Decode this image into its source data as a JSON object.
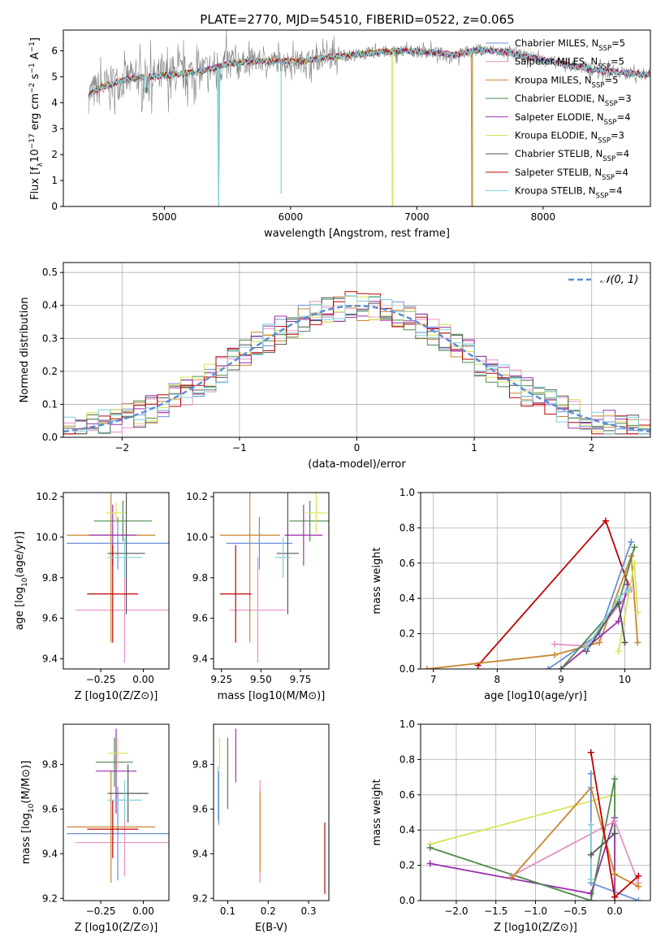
{
  "figure_title": "PLATE=2770, MJD=54510, FIBERID=0522, z=0.065",
  "chart_data": [
    {
      "id": "spectrum",
      "type": "line",
      "title": "PLATE=2770, MJD=54510, FIBERID=0522, z=0.065",
      "xlabel": "wavelength [Angstrom, rest frame]",
      "ylabel": "Flux [f_λ 10^-17 erg cm^-2 s^-1 A^-1]",
      "xlim": [
        4200,
        8850
      ],
      "ylim": [
        0,
        6.8
      ],
      "xticks": [
        5000,
        6000,
        7000,
        8000
      ],
      "yticks": [
        0,
        1,
        2,
        3,
        4,
        5,
        6
      ],
      "grid": false,
      "legend_position": "right",
      "observed_flux_color": "#808080",
      "series": [
        {
          "name": "Chabrier MILES, N_SSP=5",
          "color": "#6a8fd8"
        },
        {
          "name": "Salpeter MILES, N_SSP=5",
          "color": "#e891c8"
        },
        {
          "name": "Kroupa MILES, N_SSP=5",
          "color": "#c8852e"
        },
        {
          "name": "Chabrier ELODIE, N_SSP=3",
          "color": "#4f8a4f"
        },
        {
          "name": "Salpeter ELODIE, N_SSP=4",
          "color": "#9b30b0"
        },
        {
          "name": "Kroupa ELODIE, N_SSP=3",
          "color": "#d8e35a"
        },
        {
          "name": "Chabrier STELIB, N_SSP=4",
          "color": "#555555"
        },
        {
          "name": "Salpeter STELIB, N_SSP=4",
          "color": "#c00000"
        },
        {
          "name": "Kroupa STELIB, N_SSP=4",
          "color": "#7fd0d8"
        }
      ],
      "continuum": [
        [
          4400,
          4.3
        ],
        [
          4500,
          4.6
        ],
        [
          4700,
          4.9
        ],
        [
          4900,
          5.0
        ],
        [
          5100,
          5.1
        ],
        [
          5300,
          5.2
        ],
        [
          5500,
          5.5
        ],
        [
          5700,
          5.6
        ],
        [
          5900,
          5.6
        ],
        [
          6100,
          5.6
        ],
        [
          6300,
          5.75
        ],
        [
          6500,
          5.85
        ],
        [
          6700,
          5.95
        ],
        [
          6900,
          6.0
        ],
        [
          7100,
          5.95
        ],
        [
          7300,
          5.85
        ],
        [
          7500,
          6.05
        ],
        [
          7700,
          5.95
        ],
        [
          7900,
          5.75
        ],
        [
          8100,
          5.55
        ],
        [
          8300,
          5.35
        ],
        [
          8500,
          5.2
        ],
        [
          8800,
          5.1
        ]
      ],
      "dips": [
        [
          5430,
          0
        ],
        [
          5925,
          0.5
        ],
        [
          6810,
          0
        ],
        [
          7440,
          0
        ]
      ]
    },
    {
      "id": "residuals",
      "type": "line",
      "xlabel": "(data-model)/error",
      "ylabel": "Normed distribution",
      "xlim": [
        -2.5,
        2.5
      ],
      "ylim": [
        0,
        0.53
      ],
      "xticks": [
        -2,
        -1,
        0,
        1,
        2
      ],
      "yticks": [
        0.0,
        0.1,
        0.2,
        0.3,
        0.4,
        0.5
      ],
      "grid": true,
      "legend_position": "top-right",
      "gaussian_label": "𝒩(0, 1)",
      "gaussian_color": "#5b8ed6"
    },
    {
      "id": "age-vs-Z",
      "type": "scatter",
      "xlabel": "Z [log10(Z/Z⊙)]",
      "ylabel": "age  [log10(age/yr)]",
      "xlim": [
        -0.47,
        0.15
      ],
      "ylim": [
        9.35,
        10.22
      ],
      "xticks": [
        -0.25,
        0.0
      ],
      "yticks": [
        9.4,
        9.6,
        9.8,
        10.0,
        10.2
      ],
      "points": [
        {
          "c": "#6a8fd8",
          "x": -0.15,
          "xe": 0.3,
          "y": 9.97,
          "ye": 0.13
        },
        {
          "c": "#e891c8",
          "x": -0.11,
          "xe": 0.29,
          "y": 9.64,
          "ye": 0.26
        },
        {
          "c": "#c8852e",
          "x": -0.19,
          "xe": 0.26,
          "y": 10.01,
          "ye": 0.53
        },
        {
          "c": "#4f8a4f",
          "x": -0.12,
          "xe": 0.17,
          "y": 10.08,
          "ye": 0.1
        },
        {
          "c": "#9b30b0",
          "x": -0.18,
          "xe": 0.14,
          "y": 10.01,
          "ye": 0.15
        },
        {
          "c": "#d8e35a",
          "x": -0.16,
          "xe": 0.06,
          "y": 10.12,
          "ye": 0.05
        },
        {
          "c": "#555555",
          "x": -0.1,
          "xe": 0.11,
          "y": 9.92,
          "ye": 0.3
        },
        {
          "c": "#c00000",
          "x": -0.18,
          "xe": 0.15,
          "y": 9.72,
          "ye": 0.24
        },
        {
          "c": "#7fd0d8",
          "x": -0.11,
          "xe": 0.1,
          "y": 9.9,
          "ye": 0.1
        }
      ]
    },
    {
      "id": "age-vs-mass",
      "type": "scatter",
      "xlabel": "mass [log10(M/M⊙)]",
      "ylabel": "",
      "xlim": [
        9.2,
        9.93
      ],
      "ylim": [
        9.35,
        10.22
      ],
      "xticks": [
        9.25,
        9.5,
        9.75
      ],
      "yticks": [
        9.4,
        9.6,
        9.8,
        10.0,
        10.2
      ],
      "points": [
        {
          "c": "#6a8fd8",
          "x": 9.49,
          "xe": 0.21,
          "y": 9.97,
          "ye": 0.13
        },
        {
          "c": "#e891c8",
          "x": 9.48,
          "xe": 0.18,
          "y": 9.64,
          "ye": 0.26
        },
        {
          "c": "#c8852e",
          "x": 9.43,
          "xe": 0.19,
          "y": 10.01,
          "ye": 0.53
        },
        {
          "c": "#4f8a4f",
          "x": 9.81,
          "xe": 0.13,
          "y": 10.08,
          "ye": 0.1
        },
        {
          "c": "#9b30b0",
          "x": 9.77,
          "xe": 0.12,
          "y": 10.01,
          "ye": 0.15
        },
        {
          "c": "#d8e35a",
          "x": 9.85,
          "xe": 0.07,
          "y": 10.12,
          "ye": 0.1
        },
        {
          "c": "#555555",
          "x": 9.67,
          "xe": 0.07,
          "y": 9.92,
          "ye": 0.3
        },
        {
          "c": "#c00000",
          "x": 9.34,
          "xe": 0.1,
          "y": 9.72,
          "ye": 0.24
        },
        {
          "c": "#7fd0d8",
          "x": 9.64,
          "xe": 0.05,
          "y": 9.9,
          "ye": 0.1
        }
      ]
    },
    {
      "id": "massweight-vs-age",
      "type": "line",
      "xlabel": "age  [log10(age/yr)]",
      "ylabel": "mass weight",
      "xlim": [
        6.8,
        10.4
      ],
      "ylim": [
        0,
        1.0
      ],
      "xticks": [
        7,
        8,
        9,
        10
      ],
      "yticks": [
        0.0,
        0.2,
        0.4,
        0.6,
        0.8,
        1.0
      ],
      "grid": true,
      "series": [
        {
          "c": "#c00000",
          "pts": [
            [
              7.7,
              0.02
            ],
            [
              9.7,
              0.84
            ],
            [
              10.05,
              0.48
            ]
          ]
        },
        {
          "c": "#c8852e",
          "pts": [
            [
              6.9,
              0.0
            ],
            [
              8.9,
              0.08
            ],
            [
              9.6,
              0.15
            ],
            [
              10.1,
              0.64
            ],
            [
              10.2,
              0.15
            ]
          ]
        },
        {
          "c": "#6a8fd8",
          "pts": [
            [
              8.8,
              0.0
            ],
            [
              9.6,
              0.2
            ],
            [
              10.1,
              0.72
            ]
          ]
        },
        {
          "c": "#e891c8",
          "pts": [
            [
              8.9,
              0.14
            ],
            [
              9.4,
              0.13
            ],
            [
              10.1,
              0.45
            ]
          ]
        },
        {
          "c": "#9b30b0",
          "pts": [
            [
              9.0,
              0.0
            ],
            [
              9.9,
              0.27
            ],
            [
              10.05,
              0.48
            ]
          ]
        },
        {
          "c": "#d8e35a",
          "pts": [
            [
              9.9,
              0.1
            ],
            [
              10.15,
              0.6
            ],
            [
              10.2,
              0.32
            ]
          ]
        },
        {
          "c": "#4f8a4f",
          "pts": [
            [
              9.0,
              0.0
            ],
            [
              9.9,
              0.37
            ],
            [
              10.15,
              0.69
            ]
          ]
        },
        {
          "c": "#555555",
          "pts": [
            [
              9.4,
              0.1
            ],
            [
              9.9,
              0.38
            ],
            [
              10.0,
              0.15
            ]
          ]
        },
        {
          "c": "#7fd0d8",
          "pts": [
            [
              9.4,
              0.12
            ],
            [
              9.9,
              0.4
            ],
            [
              10.05,
              0.45
            ]
          ]
        }
      ]
    },
    {
      "id": "mass-vs-Z",
      "type": "scatter",
      "xlabel": "Z [log10(Z/Z⊙)]",
      "ylabel": "mass [log10(M/M⊙)]",
      "xlim": [
        -0.47,
        0.15
      ],
      "ylim": [
        9.19,
        9.98
      ],
      "xticks": [
        -0.25,
        0.0
      ],
      "yticks": [
        9.2,
        9.4,
        9.6,
        9.8
      ],
      "points": [
        {
          "c": "#6a8fd8",
          "x": -0.15,
          "xe": 0.3,
          "y": 9.49,
          "ye": 0.21
        },
        {
          "c": "#e891c8",
          "x": -0.11,
          "xe": 0.29,
          "y": 9.45,
          "ye": 0.15
        },
        {
          "c": "#c8852e",
          "x": -0.19,
          "xe": 0.26,
          "y": 9.52,
          "ye": 0.25
        },
        {
          "c": "#4f8a4f",
          "x": -0.17,
          "xe": 0.11,
          "y": 9.81,
          "ye": 0.11
        },
        {
          "c": "#9b30b0",
          "x": -0.16,
          "xe": 0.12,
          "y": 9.77,
          "ye": 0.19
        },
        {
          "c": "#d8e35a",
          "x": -0.15,
          "xe": 0.06,
          "y": 9.85,
          "ye": 0.07
        },
        {
          "c": "#555555",
          "x": -0.09,
          "xe": 0.12,
          "y": 9.67,
          "ye": 0.13
        },
        {
          "c": "#c00000",
          "x": -0.18,
          "xe": 0.15,
          "y": 9.51,
          "ye": 0.13
        },
        {
          "c": "#7fd0d8",
          "x": -0.11,
          "xe": 0.1,
          "y": 9.64,
          "ye": 0.09
        }
      ]
    },
    {
      "id": "mass-vs-ebv",
      "type": "scatter",
      "xlabel": "E(B-V)",
      "ylabel": "",
      "xlim": [
        0.065,
        0.35
      ],
      "ylim": [
        9.19,
        9.98
      ],
      "xticks": [
        0.1,
        0.2,
        0.3
      ],
      "yticks": [
        9.2,
        9.4,
        9.6,
        9.8
      ],
      "points": [
        {
          "c": "#6a8fd8",
          "x": 0.078,
          "y": 9.65,
          "ye": 0.12
        },
        {
          "c": "#d8e35a",
          "x": 0.08,
          "y": 9.85,
          "ye": 0.07
        },
        {
          "c": "#7fd0d8",
          "x": 0.076,
          "y": 9.67,
          "ye": 0.12
        },
        {
          "c": "#4f8a4f",
          "x": 0.1,
          "y": 9.76,
          "ye": 0.16
        },
        {
          "c": "#9b30b0",
          "x": 0.12,
          "y": 9.84,
          "ye": 0.12
        },
        {
          "c": "#e891c8",
          "x": 0.18,
          "y": 9.5,
          "ye": 0.23
        },
        {
          "c": "#c8852e",
          "x": 0.18,
          "y": 9.5,
          "ye": 0.18
        },
        {
          "c": "#c00000",
          "x": 0.34,
          "y": 9.38,
          "ye": 0.16
        }
      ]
    },
    {
      "id": "massweight-vs-Z",
      "type": "line",
      "xlabel": "Z [log10(Z/Z⊙)]",
      "ylabel": "mass weight",
      "xlim": [
        -2.45,
        0.45
      ],
      "ylim": [
        0,
        1.0
      ],
      "xticks": [
        -2.0,
        -1.5,
        -1.0,
        -0.5,
        0.0
      ],
      "yticks": [
        0.0,
        0.2,
        0.4,
        0.6,
        0.8,
        1.0
      ],
      "grid": true,
      "series": [
        {
          "c": "#d8e35a",
          "pts": [
            [
              -2.33,
              0.32
            ],
            [
              0.0,
              0.6
            ],
            [
              0.0,
              0.15
            ]
          ]
        },
        {
          "c": "#9b30b0",
          "pts": [
            [
              -2.33,
              0.21
            ],
            [
              -0.3,
              0.04
            ],
            [
              0.0,
              0.47
            ],
            [
              0.0,
              0.02
            ]
          ]
        },
        {
          "c": "#4f8a4f",
          "pts": [
            [
              -2.33,
              0.3
            ],
            [
              -0.3,
              0.0
            ],
            [
              0.0,
              0.69
            ],
            [
              0.0,
              0.38
            ]
          ]
        },
        {
          "c": "#e891c8",
          "pts": [
            [
              -1.3,
              0.14
            ],
            [
              0.0,
              0.45
            ],
            [
              0.3,
              0.1
            ]
          ]
        },
        {
          "c": "#c8852e",
          "pts": [
            [
              -1.3,
              0.13
            ],
            [
              -0.3,
              0.64
            ],
            [
              0.0,
              0.15
            ],
            [
              0.3,
              0.08
            ]
          ]
        },
        {
          "c": "#6a8fd8",
          "pts": [
            [
              -0.3,
              0.72
            ],
            [
              -0.3,
              0.1
            ],
            [
              0.3,
              0.0
            ]
          ]
        },
        {
          "c": "#c00000",
          "pts": [
            [
              -0.3,
              0.84
            ],
            [
              0.0,
              0.02
            ],
            [
              0.3,
              0.14
            ]
          ]
        },
        {
          "c": "#7fd0d8",
          "pts": [
            [
              -0.3,
              0.43
            ],
            [
              -0.3,
              0.12
            ]
          ]
        },
        {
          "c": "#555555",
          "pts": [
            [
              -0.3,
              0.26
            ],
            [
              0.0,
              0.38
            ]
          ]
        }
      ]
    }
  ]
}
